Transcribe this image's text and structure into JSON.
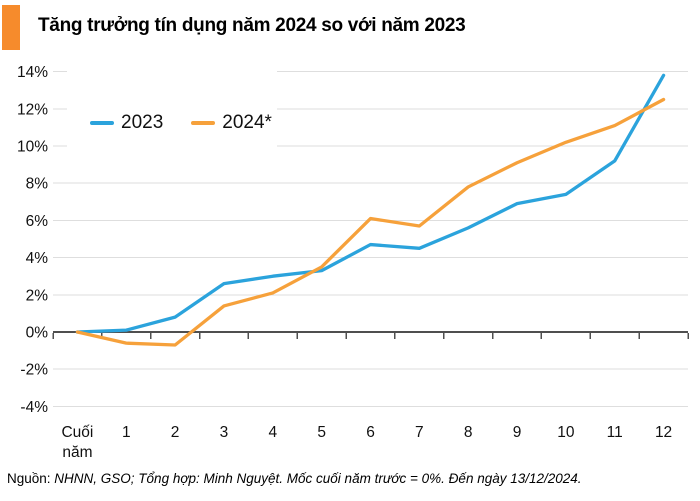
{
  "title": {
    "text": "Tăng trưởng tín dụng năm 2024 so với năm 2023"
  },
  "footer": {
    "source_label": "Nguồn:",
    "source_rest": " NHNN, GSO; Tổng hợp: Minh Nguyệt. Mốc cuối năm trước = 0%. Đến ngày 13/12/2024."
  },
  "colors": {
    "accent_square": "#F68B2C",
    "series_2023": "#2BA3DC",
    "series_2024": "#F6A13B",
    "grid": "#DEDEDE",
    "axis": "#4F4F4F",
    "text": "#111111"
  },
  "chart_data": {
    "type": "line",
    "title": "Tăng trưởng tín dụng năm 2024 so với năm 2023",
    "xlabel": "",
    "ylabel": "",
    "categories": [
      "Cuối năm",
      "1",
      "2",
      "3",
      "4",
      "5",
      "6",
      "7",
      "8",
      "9",
      "10",
      "11",
      "12"
    ],
    "series": [
      {
        "name": "2023",
        "color": "#2BA3DC",
        "values": [
          0,
          0.1,
          0.8,
          2.6,
          3.0,
          3.3,
          4.7,
          4.5,
          5.6,
          6.9,
          7.4,
          9.2,
          13.8
        ]
      },
      {
        "name": "2024*",
        "color": "#F6A13B",
        "values": [
          0,
          -0.6,
          -0.7,
          1.4,
          2.1,
          3.5,
          6.1,
          5.7,
          7.8,
          9.1,
          10.2,
          11.1,
          12.5
        ]
      }
    ],
    "yticks": [
      14,
      12,
      10,
      8,
      6,
      4,
      2,
      0,
      -2,
      -4
    ],
    "ytick_suffix": "%",
    "ylim": [
      -4.6,
      14.6
    ],
    "grid": true,
    "baseline": 0,
    "legend_position": "top-left"
  }
}
